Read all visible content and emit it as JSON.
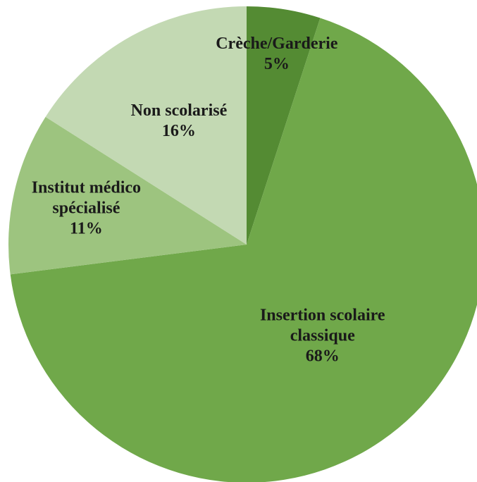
{
  "chart_data": {
    "type": "pie",
    "categories": [
      "Crèche/Garderie",
      "Insertion scolaire classique",
      "Institut médico spécialisé",
      "Non scolarisé"
    ],
    "values": [
      5,
      68,
      11,
      16
    ],
    "value_labels": [
      "5%",
      "68%",
      "11%",
      "16%"
    ],
    "colors": [
      "#548b33",
      "#70a84a",
      "#9dc47f",
      "#c3d9b3"
    ]
  }
}
